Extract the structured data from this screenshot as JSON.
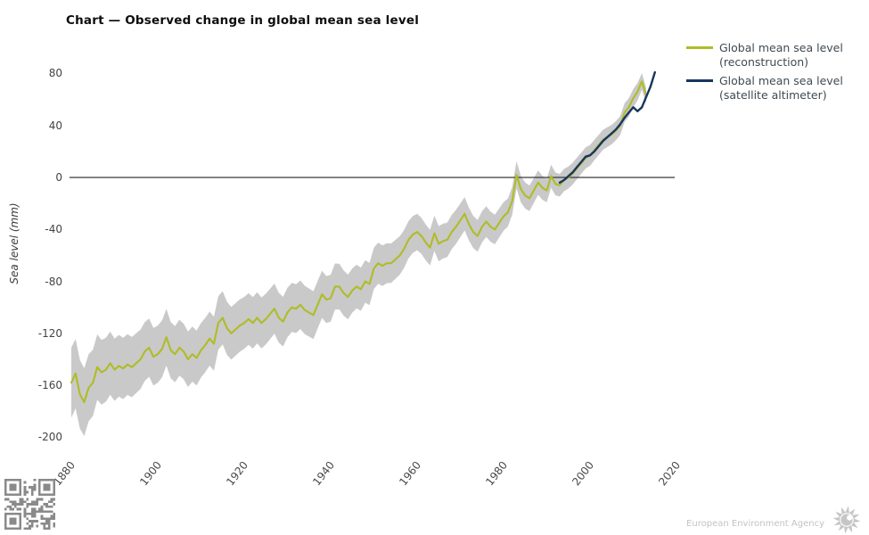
{
  "title": "Chart — Observed change in global mean sea level",
  "legend": {
    "items": [
      {
        "line1": "Global mean sea level",
        "line2": "(reconstruction)",
        "color": "#afbc26"
      },
      {
        "line1": "Global mean sea level",
        "line2": "(satellite altimeter)",
        "color": "#17365d"
      }
    ]
  },
  "footer": {
    "agency": "European Environment Agency"
  },
  "colors": {
    "reconstruction_line": "#afbc26",
    "satellite_line": "#17365d",
    "uncertainty_band": "#c9c9c9",
    "zero_line": "#3a3a3a",
    "tick_text": "#484848",
    "qr": "#8a8a8a",
    "logo": "#c6c6c6"
  },
  "chart_data": {
    "type": "line",
    "title": "Chart — Observed change in global mean sea level",
    "xlabel": "",
    "ylabel": "Sea level (mm)",
    "xlim": [
      1880,
      2020
    ],
    "ylim": [
      -200,
      80
    ],
    "x_ticks": [
      1880,
      1900,
      1920,
      1940,
      1960,
      1980,
      2000,
      2020
    ],
    "y_ticks": [
      80,
      40,
      0,
      -40,
      -80,
      -120,
      -160,
      -200
    ],
    "grid": false,
    "zero_line": true,
    "legend_position": "top-right",
    "series": [
      {
        "name": "Global mean sea level (reconstruction)",
        "color": "#afbc26",
        "start_year": 1880,
        "values": [
          -158,
          -151,
          -167,
          -173,
          -162,
          -158,
          -146,
          -150,
          -148,
          -143,
          -148,
          -145,
          -147,
          -144,
          -146,
          -143,
          -140,
          -134,
          -131,
          -138,
          -136,
          -132,
          -123,
          -133,
          -136,
          -131,
          -134,
          -140,
          -136,
          -139,
          -133,
          -129,
          -124,
          -128,
          -112,
          -108,
          -116,
          -120,
          -117,
          -114,
          -112,
          -109,
          -112,
          -108,
          -112,
          -109,
          -105,
          -101,
          -108,
          -111,
          -104,
          -100,
          -101,
          -98,
          -102,
          -104,
          -106,
          -98,
          -90,
          -94,
          -93,
          -84,
          -84,
          -89,
          -92,
          -87,
          -84,
          -86,
          -80,
          -82,
          -70,
          -66,
          -68,
          -66,
          -66,
          -63,
          -60,
          -55,
          -48,
          -44,
          -42,
          -45,
          -50,
          -54,
          -43,
          -51,
          -49,
          -48,
          -42,
          -38,
          -33,
          -28,
          -36,
          -42,
          -45,
          -38,
          -34,
          -38,
          -40,
          -35,
          -30,
          -27,
          -18,
          2,
          -9,
          -14,
          -16,
          -10,
          -4,
          -8,
          -10,
          1,
          -5,
          -6,
          -2,
          0,
          3,
          7,
          11,
          15,
          17,
          21,
          25,
          29,
          31,
          33,
          36,
          40,
          50,
          54,
          61,
          66,
          74,
          63
        ]
      },
      {
        "name": "Global mean sea level (satellite altimeter)",
        "color": "#17365d",
        "start_year": 1993,
        "values": [
          -4,
          -2,
          1,
          4,
          8,
          12,
          16,
          17,
          20,
          24,
          28,
          31,
          34,
          37,
          41,
          46,
          50,
          54,
          51,
          54,
          62,
          70,
          81
        ]
      }
    ],
    "uncertainty_band": {
      "applies_to": "Global mean sea level (reconstruction)",
      "color": "#c9c9c9",
      "halfwidth_points": [
        {
          "year": 1880,
          "hw": 27
        },
        {
          "year": 1890,
          "hw": 24
        },
        {
          "year": 1900,
          "hw": 22
        },
        {
          "year": 1910,
          "hw": 21
        },
        {
          "year": 1920,
          "hw": 20
        },
        {
          "year": 1930,
          "hw": 19
        },
        {
          "year": 1940,
          "hw": 18
        },
        {
          "year": 1950,
          "hw": 16
        },
        {
          "year": 1960,
          "hw": 14
        },
        {
          "year": 1970,
          "hw": 13
        },
        {
          "year": 1980,
          "hw": 11
        },
        {
          "year": 1990,
          "hw": 9
        },
        {
          "year": 2000,
          "hw": 8
        },
        {
          "year": 2010,
          "hw": 7
        },
        {
          "year": 2013,
          "hw": 6
        }
      ]
    }
  }
}
